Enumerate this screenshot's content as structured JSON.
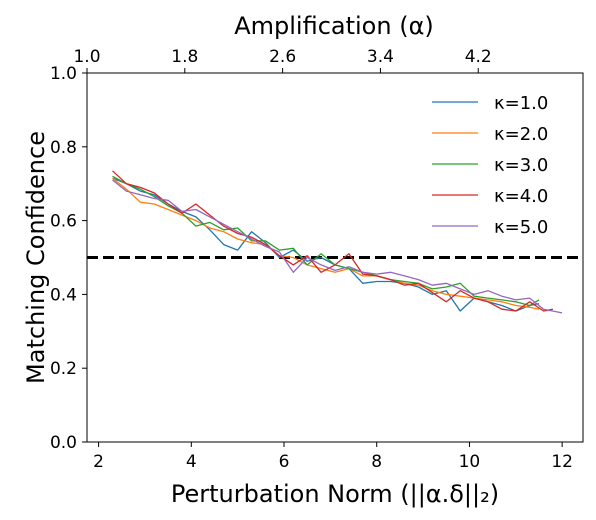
{
  "chart_data": {
    "type": "line",
    "xlabel": "Perturbation Norm (||α.δ||₂)",
    "ylabel": "Matching Confidence",
    "top_xlabel": "Amplification (α)",
    "xlim": [
      1.75,
      12.45
    ],
    "ylim": [
      0.0,
      1.0
    ],
    "x_ticks": [
      "2",
      "4",
      "6",
      "8",
      "10",
      "12"
    ],
    "y_ticks": [
      "0.0",
      "0.2",
      "0.4",
      "0.6",
      "0.8",
      "1.0"
    ],
    "top_ticks": [
      "1.0",
      "1.8",
      "2.6",
      "3.4",
      "4.2"
    ],
    "top_tick_x_positions": [
      1.75,
      3.86,
      5.97,
      8.08,
      10.19
    ],
    "grid": false,
    "legend_position": "top-right",
    "threshold": {
      "y": 0.5,
      "style": "dashed",
      "color": "#000000"
    },
    "series": [
      {
        "name": "κ=1.0",
        "color": "#1f77b4",
        "x": [
          2.3,
          2.6,
          2.9,
          3.2,
          3.5,
          3.8,
          4.1,
          4.4,
          4.7,
          5.0,
          5.3,
          5.6,
          5.9,
          6.2,
          6.5,
          6.8,
          7.1,
          7.4,
          7.7,
          8.0,
          8.3,
          8.6,
          8.9,
          9.2,
          9.5,
          9.8,
          10.1,
          10.4,
          10.7,
          11.0,
          11.3,
          11.5
        ],
        "y": [
          0.715,
          0.7,
          0.68,
          0.67,
          0.645,
          0.625,
          0.61,
          0.575,
          0.535,
          0.52,
          0.57,
          0.54,
          0.5,
          0.52,
          0.49,
          0.5,
          0.48,
          0.47,
          0.43,
          0.435,
          0.435,
          0.43,
          0.42,
          0.4,
          0.41,
          0.355,
          0.39,
          0.38,
          0.37,
          0.355,
          0.37,
          0.375
        ]
      },
      {
        "name": "κ=2.0",
        "color": "#ff7f0e",
        "x": [
          2.3,
          2.6,
          2.9,
          3.2,
          3.5,
          3.8,
          4.1,
          4.4,
          4.7,
          5.0,
          5.3,
          5.6,
          5.9,
          6.2,
          6.5,
          6.8,
          7.1,
          7.4,
          7.7,
          8.0,
          8.3,
          8.6,
          8.9,
          9.2,
          9.5,
          9.8,
          10.1,
          10.4,
          10.7,
          11.0,
          11.3,
          11.5
        ],
        "y": [
          0.715,
          0.685,
          0.65,
          0.645,
          0.63,
          0.615,
          0.6,
          0.58,
          0.57,
          0.55,
          0.54,
          0.535,
          0.505,
          0.5,
          0.48,
          0.47,
          0.46,
          0.47,
          0.45,
          0.45,
          0.44,
          0.43,
          0.425,
          0.41,
          0.4,
          0.395,
          0.39,
          0.385,
          0.38,
          0.37,
          0.365,
          0.36
        ]
      },
      {
        "name": "κ=3.0",
        "color": "#2ca02c",
        "x": [
          2.3,
          2.6,
          2.9,
          3.2,
          3.5,
          3.8,
          4.1,
          4.4,
          4.7,
          5.0,
          5.3,
          5.6,
          5.9,
          6.2,
          6.5,
          6.8,
          7.1,
          7.4,
          7.7,
          8.0,
          8.3,
          8.6,
          8.9,
          9.2,
          9.5,
          9.8,
          10.1,
          10.4,
          10.7,
          11.0,
          11.3,
          11.5
        ],
        "y": [
          0.72,
          0.7,
          0.685,
          0.665,
          0.64,
          0.62,
          0.585,
          0.595,
          0.575,
          0.58,
          0.545,
          0.545,
          0.52,
          0.525,
          0.48,
          0.51,
          0.48,
          0.47,
          0.46,
          0.45,
          0.44,
          0.435,
          0.43,
          0.415,
          0.42,
          0.43,
          0.395,
          0.39,
          0.385,
          0.38,
          0.37,
          0.385
        ]
      },
      {
        "name": "κ=4.0",
        "color": "#d62728",
        "x": [
          2.3,
          2.6,
          2.9,
          3.2,
          3.5,
          3.8,
          4.1,
          4.4,
          4.7,
          5.0,
          5.3,
          5.6,
          5.9,
          6.2,
          6.5,
          6.8,
          7.1,
          7.4,
          7.7,
          8.0,
          8.3,
          8.6,
          8.9,
          9.2,
          9.5,
          9.8,
          10.1,
          10.4,
          10.7,
          11.0,
          11.3,
          11.6,
          11.8
        ],
        "y": [
          0.735,
          0.7,
          0.69,
          0.675,
          0.645,
          0.62,
          0.645,
          0.615,
          0.585,
          0.565,
          0.555,
          0.535,
          0.505,
          0.48,
          0.505,
          0.46,
          0.48,
          0.51,
          0.455,
          0.45,
          0.44,
          0.425,
          0.43,
          0.405,
          0.38,
          0.41,
          0.39,
          0.38,
          0.36,
          0.355,
          0.38,
          0.355,
          0.36
        ]
      },
      {
        "name": "κ=5.0",
        "color": "#9467bd",
        "x": [
          2.3,
          2.6,
          2.9,
          3.2,
          3.5,
          3.8,
          4.1,
          4.4,
          4.7,
          5.0,
          5.3,
          5.6,
          5.9,
          6.2,
          6.5,
          6.8,
          7.1,
          7.4,
          7.7,
          8.0,
          8.3,
          8.6,
          8.9,
          9.2,
          9.5,
          9.8,
          10.1,
          10.4,
          10.7,
          11.0,
          11.3,
          11.6,
          12.0
        ],
        "y": [
          0.71,
          0.68,
          0.67,
          0.66,
          0.655,
          0.625,
          0.63,
          0.61,
          0.59,
          0.57,
          0.55,
          0.53,
          0.515,
          0.46,
          0.5,
          0.48,
          0.465,
          0.475,
          0.46,
          0.455,
          0.46,
          0.45,
          0.44,
          0.425,
          0.43,
          0.415,
          0.4,
          0.41,
          0.395,
          0.385,
          0.39,
          0.36,
          0.35
        ]
      }
    ]
  }
}
